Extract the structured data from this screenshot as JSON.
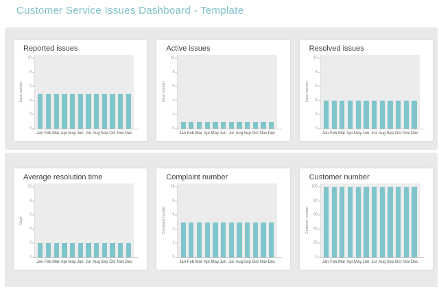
{
  "page": {
    "title": "Customer Service Issues Dashboard - Template"
  },
  "colors": {
    "accent": "#7cc0c9",
    "bar": "#7fc5cb",
    "container_bg": "#e9e9e9",
    "plot_bg": "#ececec",
    "card_bg": "#ffffff"
  },
  "months": [
    "Jan",
    "Feb",
    "Mar",
    "Apr",
    "May",
    "Jun",
    "Jul",
    "Aug",
    "Sep",
    "Oct",
    "Nov",
    "Dec"
  ],
  "chart_data": [
    {
      "type": "bar",
      "title": "Reported issues",
      "ylabel": "Issue number",
      "xlabel": "",
      "categories": [
        "Jan",
        "Feb",
        "Mar",
        "Apr",
        "May",
        "Jun",
        "Jul",
        "Aug",
        "Sep",
        "Oct",
        "Nov",
        "Dec"
      ],
      "values": [
        5,
        5,
        5,
        5,
        5,
        5,
        5,
        5,
        5,
        5,
        5,
        5
      ],
      "ylim": [
        0,
        10.5
      ],
      "yticks": [
        0,
        2,
        4,
        6,
        8,
        10
      ],
      "grid": false,
      "legend": false
    },
    {
      "type": "bar",
      "title": "Active issues",
      "ylabel": "Issue number",
      "xlabel": "",
      "categories": [
        "Jan",
        "Feb",
        "Mar",
        "Apr",
        "May",
        "Jun",
        "Jul",
        "Aug",
        "Sep",
        "Oct",
        "Nov",
        "Dec"
      ],
      "values": [
        1,
        1,
        1,
        1,
        1,
        1,
        1,
        1,
        1,
        1,
        1,
        1
      ],
      "ylim": [
        0,
        10.5
      ],
      "yticks": [
        0,
        2,
        4,
        6,
        8,
        10
      ],
      "grid": false,
      "legend": false
    },
    {
      "type": "bar",
      "title": "Resolved issues",
      "ylabel": "Issue number",
      "xlabel": "",
      "categories": [
        "Jan",
        "Feb",
        "Mar",
        "Apr",
        "May",
        "Jun",
        "Jul",
        "Aug",
        "Sep",
        "Oct",
        "Nov",
        "Dec"
      ],
      "values": [
        4,
        4,
        4,
        4,
        4,
        4,
        4,
        4,
        4,
        4,
        4,
        4
      ],
      "ylim": [
        0,
        10.5
      ],
      "yticks": [
        0,
        2,
        4,
        6,
        8,
        10
      ],
      "grid": false,
      "legend": false
    },
    {
      "type": "bar",
      "title": "Average resolution time",
      "ylabel": "Days",
      "xlabel": "",
      "categories": [
        "Jan",
        "Feb",
        "Mar",
        "Apr",
        "May",
        "Jun",
        "Jul",
        "Aug",
        "Sep",
        "Oct",
        "Nov",
        "Dec"
      ],
      "values": [
        2,
        2,
        2,
        2,
        2,
        2,
        2,
        2,
        2,
        2,
        2,
        2
      ],
      "ylim": [
        0,
        10.5
      ],
      "yticks": [
        0,
        2,
        4,
        6,
        8,
        10
      ],
      "grid": false,
      "legend": false
    },
    {
      "type": "bar",
      "title": "Complaint number",
      "ylabel": "Complaint number",
      "xlabel": "",
      "categories": [
        "Jan",
        "Feb",
        "Mar",
        "Apr",
        "May",
        "Jun",
        "Jul",
        "Aug",
        "Sep",
        "Oct",
        "Nov",
        "Dec"
      ],
      "values": [
        5,
        5,
        5,
        5,
        5,
        5,
        5,
        5,
        5,
        5,
        5,
        5
      ],
      "ylim": [
        0,
        10.5
      ],
      "yticks": [
        0,
        2,
        4,
        6,
        8,
        10
      ],
      "grid": false,
      "legend": false
    },
    {
      "type": "bar",
      "title": "Customer number",
      "ylabel": "Customer number",
      "xlabel": "",
      "categories": [
        "Jan",
        "Feb",
        "Mar",
        "Apr",
        "May",
        "Jun",
        "Jul",
        "Aug",
        "Sep",
        "Oct",
        "Nov",
        "Dec"
      ],
      "values": [
        100,
        100,
        100,
        100,
        100,
        100,
        100,
        100,
        100,
        100,
        100,
        100
      ],
      "ylim": [
        0,
        105
      ],
      "yticks": [
        0,
        20,
        40,
        60,
        80,
        100
      ],
      "grid": false,
      "legend": false
    }
  ]
}
